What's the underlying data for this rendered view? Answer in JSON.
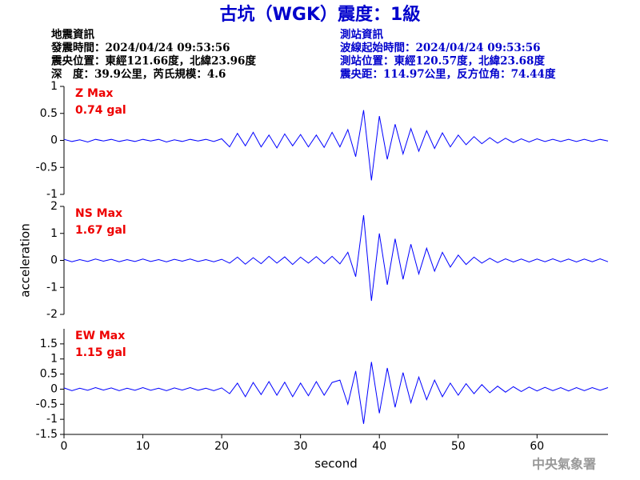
{
  "title": "古坑（WGK）震度：1級",
  "info_left": [
    "地震資訊",
    "發震時間：2024/04/24 09:53:56",
    "震央位置：東經121.66度，北緯23.96度",
    "深　度：39.9公里，芮氏規模：4.6"
  ],
  "info_right": [
    "測站資訊",
    "波線起始時間：2024/04/24 09:53:56",
    "測站位置：東經120.57度，北緯23.68度",
    "震央距：114.97公里，反方位角：74.44度"
  ],
  "footer": "中央氣象署",
  "chart_data": [
    {
      "type": "line",
      "annotations": [
        "Z Max",
        "0.74 gal"
      ],
      "ylim": [
        -1,
        1
      ],
      "yticks": [
        -1,
        -0.5,
        0,
        0.5,
        1
      ],
      "xlim": [
        0,
        69
      ],
      "x": [
        0,
        1,
        2,
        3,
        4,
        5,
        6,
        7,
        8,
        9,
        10,
        11,
        12,
        13,
        14,
        15,
        16,
        17,
        18,
        19,
        20,
        21,
        22,
        23,
        24,
        25,
        26,
        27,
        28,
        29,
        30,
        31,
        32,
        33,
        34,
        35,
        36,
        37,
        38,
        39,
        40,
        41,
        42,
        43,
        44,
        45,
        46,
        47,
        48,
        49,
        50,
        51,
        52,
        53,
        54,
        55,
        56,
        57,
        58,
        59,
        60,
        61,
        62,
        63,
        64,
        65,
        66,
        67,
        68,
        69
      ],
      "series": [
        {
          "color": "#0000ff",
          "values": [
            0.02,
            -0.02,
            0.01,
            -0.03,
            0.02,
            -0.01,
            0.02,
            -0.02,
            0.01,
            -0.02,
            0.02,
            -0.01,
            0.02,
            -0.03,
            0.01,
            -0.02,
            0.02,
            -0.01,
            0.02,
            -0.02,
            0.03,
            -0.12,
            0.13,
            -0.1,
            0.15,
            -0.12,
            0.1,
            -0.14,
            0.12,
            -0.1,
            0.11,
            -0.12,
            0.1,
            -0.13,
            0.15,
            -0.12,
            0.2,
            -0.3,
            0.56,
            -0.74,
            0.45,
            -0.35,
            0.3,
            -0.25,
            0.22,
            -0.2,
            0.18,
            -0.15,
            0.14,
            -0.12,
            0.1,
            -0.08,
            0.07,
            -0.06,
            0.05,
            -0.05,
            0.04,
            -0.04,
            0.03,
            -0.03,
            0.03,
            -0.02,
            0.02,
            -0.02,
            0.02,
            -0.02,
            0.02,
            -0.02,
            0.02,
            -0.01
          ]
        }
      ]
    },
    {
      "type": "line",
      "annotations": [
        "NS Max",
        "1.67 gal"
      ],
      "ylabel": "acceleration",
      "ylim": [
        -2,
        2
      ],
      "yticks": [
        -2,
        -1,
        0,
        1,
        2
      ],
      "xlim": [
        0,
        69
      ],
      "x": [
        0,
        1,
        2,
        3,
        4,
        5,
        6,
        7,
        8,
        9,
        10,
        11,
        12,
        13,
        14,
        15,
        16,
        17,
        18,
        19,
        20,
        21,
        22,
        23,
        24,
        25,
        26,
        27,
        28,
        29,
        30,
        31,
        32,
        33,
        34,
        35,
        36,
        37,
        38,
        39,
        40,
        41,
        42,
        43,
        44,
        45,
        46,
        47,
        48,
        49,
        50,
        51,
        52,
        53,
        54,
        55,
        56,
        57,
        58,
        59,
        60,
        61,
        62,
        63,
        64,
        65,
        66,
        67,
        68,
        69
      ],
      "series": [
        {
          "color": "#0000ff",
          "values": [
            0.04,
            -0.05,
            0.03,
            -0.04,
            0.05,
            -0.03,
            0.04,
            -0.05,
            0.03,
            -0.04,
            0.05,
            -0.04,
            0.03,
            -0.05,
            0.04,
            -0.03,
            0.05,
            -0.04,
            0.03,
            -0.05,
            0.04,
            -0.1,
            0.12,
            -0.14,
            0.1,
            -0.12,
            0.15,
            -0.1,
            0.13,
            -0.15,
            0.12,
            -0.1,
            0.14,
            -0.12,
            0.15,
            -0.13,
            0.3,
            -0.6,
            1.67,
            -1.5,
            1.0,
            -0.9,
            0.8,
            -0.7,
            0.6,
            -0.5,
            0.45,
            -0.4,
            0.3,
            -0.25,
            0.2,
            -0.15,
            0.12,
            -0.1,
            0.08,
            -0.08,
            0.06,
            -0.06,
            0.05,
            -0.06,
            0.05,
            -0.05,
            0.06,
            -0.05,
            0.05,
            -0.06,
            0.05,
            -0.05,
            0.06,
            -0.05
          ]
        }
      ]
    },
    {
      "type": "line",
      "annotations": [
        "EW Max",
        "1.15 gal"
      ],
      "ylim": [
        -1.5,
        2
      ],
      "yticks": [
        -1.5,
        -1,
        -0.5,
        0,
        0.5,
        1,
        1.5
      ],
      "xlim": [
        0,
        69
      ],
      "xticks": [
        0,
        10,
        20,
        30,
        40,
        50,
        60
      ],
      "xlabel": "second",
      "x": [
        0,
        1,
        2,
        3,
        4,
        5,
        6,
        7,
        8,
        9,
        10,
        11,
        12,
        13,
        14,
        15,
        16,
        17,
        18,
        19,
        20,
        21,
        22,
        23,
        24,
        25,
        26,
        27,
        28,
        29,
        30,
        31,
        32,
        33,
        34,
        35,
        36,
        37,
        38,
        39,
        40,
        41,
        42,
        43,
        44,
        45,
        46,
        47,
        48,
        49,
        50,
        51,
        52,
        53,
        54,
        55,
        56,
        57,
        58,
        59,
        60,
        61,
        62,
        63,
        64,
        65,
        66,
        67,
        68,
        69
      ],
      "series": [
        {
          "color": "#0000ff",
          "values": [
            0.04,
            -0.05,
            0.03,
            -0.04,
            0.05,
            -0.03,
            0.04,
            -0.05,
            0.03,
            -0.04,
            0.05,
            -0.04,
            0.03,
            -0.05,
            0.04,
            -0.03,
            0.05,
            -0.04,
            0.03,
            -0.05,
            0.04,
            -0.15,
            0.2,
            -0.25,
            0.22,
            -0.18,
            0.25,
            -0.2,
            0.23,
            -0.25,
            0.2,
            -0.22,
            0.25,
            -0.2,
            0.22,
            0.3,
            -0.5,
            0.6,
            -1.15,
            0.9,
            -0.8,
            0.7,
            -0.6,
            0.55,
            -0.45,
            0.4,
            -0.35,
            0.3,
            -0.25,
            0.2,
            -0.2,
            0.18,
            -0.15,
            0.15,
            -0.12,
            0.1,
            -0.1,
            0.08,
            -0.08,
            0.07,
            -0.06,
            0.06,
            -0.05,
            0.05,
            -0.06,
            0.05,
            -0.05,
            0.05,
            -0.04,
            0.05
          ]
        }
      ]
    }
  ]
}
